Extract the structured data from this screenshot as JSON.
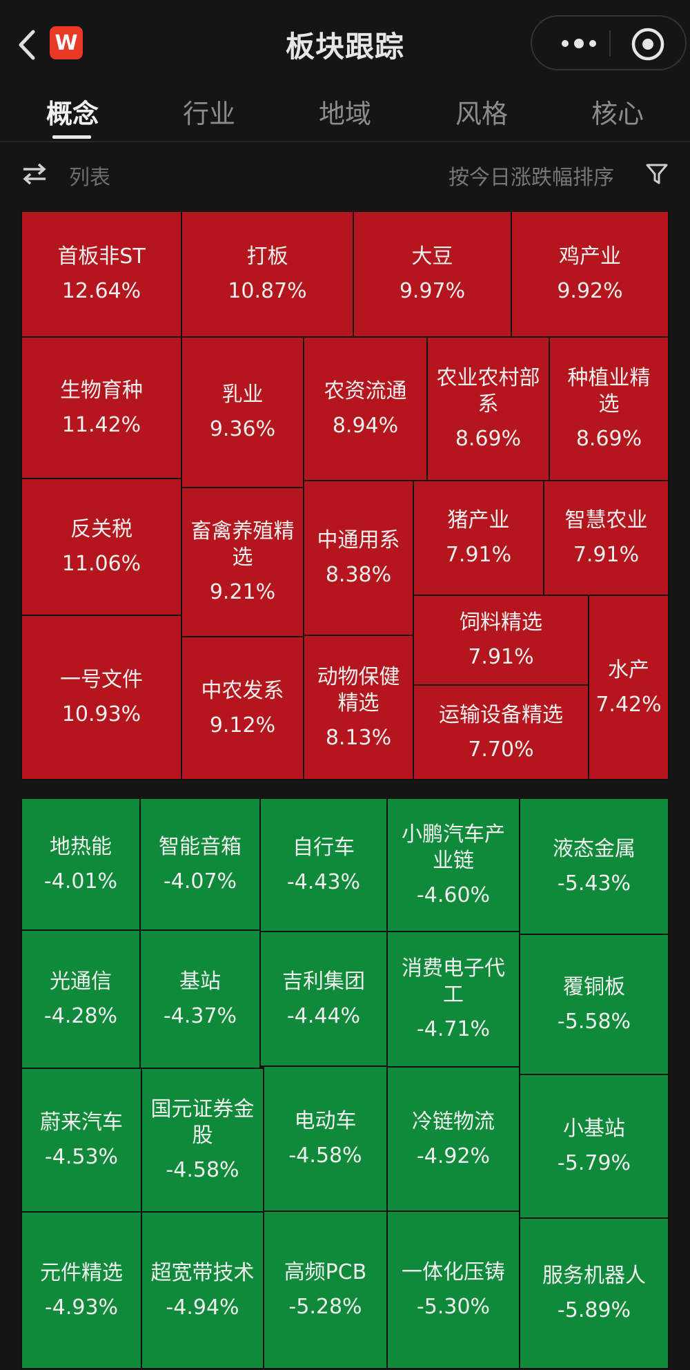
{
  "header": {
    "title": "板块跟踪",
    "logo_letter": "W"
  },
  "tabs": [
    "概念",
    "行业",
    "地域",
    "风格",
    "核心"
  ],
  "active_tab": 0,
  "toolbar": {
    "list_label": "列表",
    "sort_label": "按今日涨跌幅排序"
  },
  "colors": {
    "up": "#b5151c",
    "down": "#0f8a3a",
    "background": "#151515"
  },
  "gainers": [
    {
      "name": "首板非ST",
      "pct": "12.64%"
    },
    {
      "name": "打板",
      "pct": "10.87%"
    },
    {
      "name": "大豆",
      "pct": "9.97%"
    },
    {
      "name": "鸡产业",
      "pct": "9.92%"
    },
    {
      "name": "生物育种",
      "pct": "11.42%"
    },
    {
      "name": "乳业",
      "pct": "9.36%"
    },
    {
      "name": "农资流通",
      "pct": "8.94%"
    },
    {
      "name": "农业农村部系",
      "pct": "8.69%"
    },
    {
      "name": "种植业精选",
      "pct": "8.69%"
    },
    {
      "name": "反关税",
      "pct": "11.06%"
    },
    {
      "name": "畜禽养殖精选",
      "pct": "9.21%"
    },
    {
      "name": "中通用系",
      "pct": "8.38%"
    },
    {
      "name": "猪产业",
      "pct": "7.91%"
    },
    {
      "name": "智慧农业",
      "pct": "7.91%"
    },
    {
      "name": "一号文件",
      "pct": "10.93%"
    },
    {
      "name": "中农发系",
      "pct": "9.12%"
    },
    {
      "name": "动物保健精选",
      "pct": "8.13%"
    },
    {
      "name": "饲料精选",
      "pct": "7.91%"
    },
    {
      "name": "水产",
      "pct": "7.42%"
    },
    {
      "name": "运输设备精选",
      "pct": "7.70%"
    }
  ],
  "losers": [
    {
      "name": "地热能",
      "pct": "-4.01%"
    },
    {
      "name": "智能音箱",
      "pct": "-4.07%"
    },
    {
      "name": "自行车",
      "pct": "-4.43%"
    },
    {
      "name": "小鹏汽车产业链",
      "pct": "-4.60%"
    },
    {
      "name": "液态金属",
      "pct": "-5.43%"
    },
    {
      "name": "光通信",
      "pct": "-4.28%"
    },
    {
      "name": "基站",
      "pct": "-4.37%"
    },
    {
      "name": "吉利集团",
      "pct": "-4.44%"
    },
    {
      "name": "消费电子代工",
      "pct": "-4.71%"
    },
    {
      "name": "覆铜板",
      "pct": "-5.58%"
    },
    {
      "name": "蔚来汽车",
      "pct": "-4.53%"
    },
    {
      "name": "国元证券金股",
      "pct": "-4.58%"
    },
    {
      "name": "电动车",
      "pct": "-4.58%"
    },
    {
      "name": "冷链物流",
      "pct": "-4.92%"
    },
    {
      "name": "小基站",
      "pct": "-5.79%"
    },
    {
      "name": "元件精选",
      "pct": "-4.93%"
    },
    {
      "name": "超宽带技术",
      "pct": "-4.94%"
    },
    {
      "name": "高频PCB",
      "pct": "-5.28%"
    },
    {
      "name": "一体化压铸",
      "pct": "-5.30%"
    },
    {
      "name": "服务机器人",
      "pct": "-5.89%"
    }
  ]
}
